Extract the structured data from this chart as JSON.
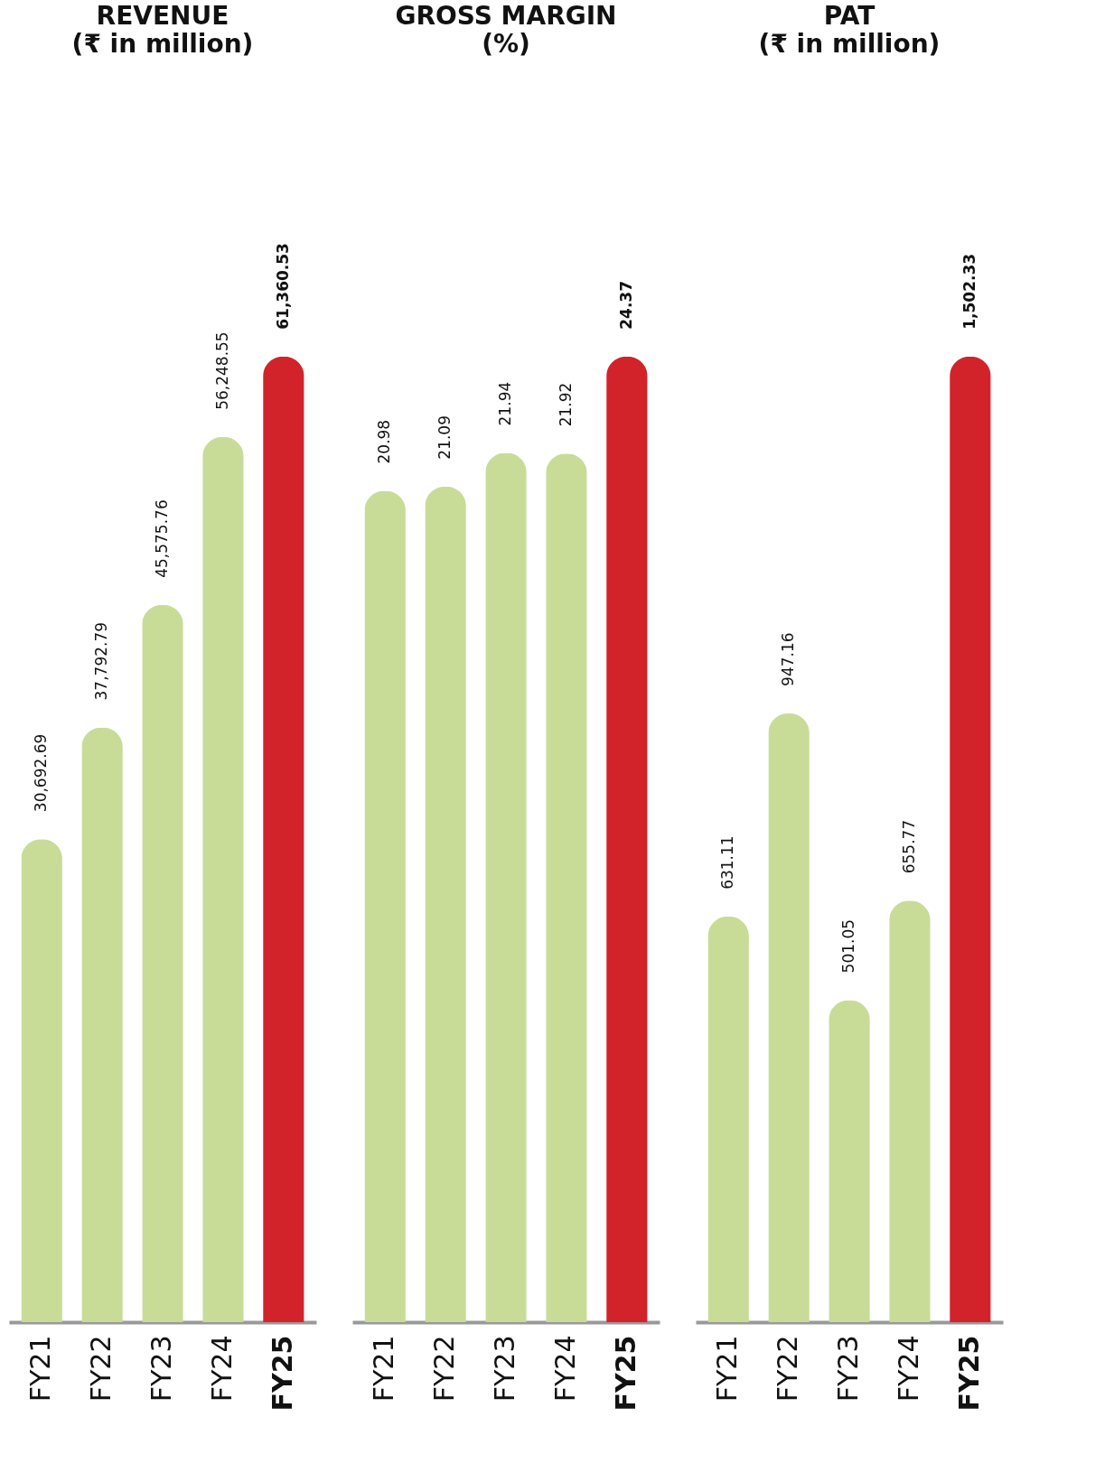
{
  "chart_data": [
    {
      "type": "bar",
      "title": "REVENUE",
      "subtitle": "(₹ in million)",
      "categories": [
        "FY21",
        "FY22",
        "FY23",
        "FY24",
        "FY25"
      ],
      "values": [
        30692.69,
        37792.79,
        45575.76,
        56248.55,
        61360.53
      ],
      "value_labels": [
        "30,692.69",
        "37,792.79",
        "45,575.76",
        "56,248.55",
        "61,360.53"
      ],
      "colors": [
        "#c8dc98",
        "#c8dc98",
        "#c8dc98",
        "#c8dc98",
        "#d2232a"
      ]
    },
    {
      "type": "bar",
      "title": "GROSS MARGIN",
      "subtitle": "(%)",
      "categories": [
        "FY21",
        "FY22",
        "FY23",
        "FY24",
        "FY25"
      ],
      "values": [
        20.98,
        21.09,
        21.94,
        21.92,
        24.37
      ],
      "data_labels": true,
      "colors": [
        "#c8dc98",
        "#c8dc98",
        "#c8dc98",
        "#c8dc98",
        "#d2232a"
      ]
    },
    {
      "type": "bar",
      "title": "PAT",
      "subtitle": "(₹ in million)",
      "categories": [
        "FY21",
        "FY22",
        "FY23",
        "FY24",
        "FY25"
      ],
      "values": [
        631.11,
        947.16,
        501.05,
        655.77,
        1502.33
      ],
      "value_labels": [
        "631.11",
        "947.16",
        "501.05",
        "655.77",
        "1,502.33"
      ],
      "colors": [
        "#c8dc98",
        "#c8dc98",
        "#c8dc98",
        "#c8dc98",
        "#d2232a"
      ]
    }
  ]
}
